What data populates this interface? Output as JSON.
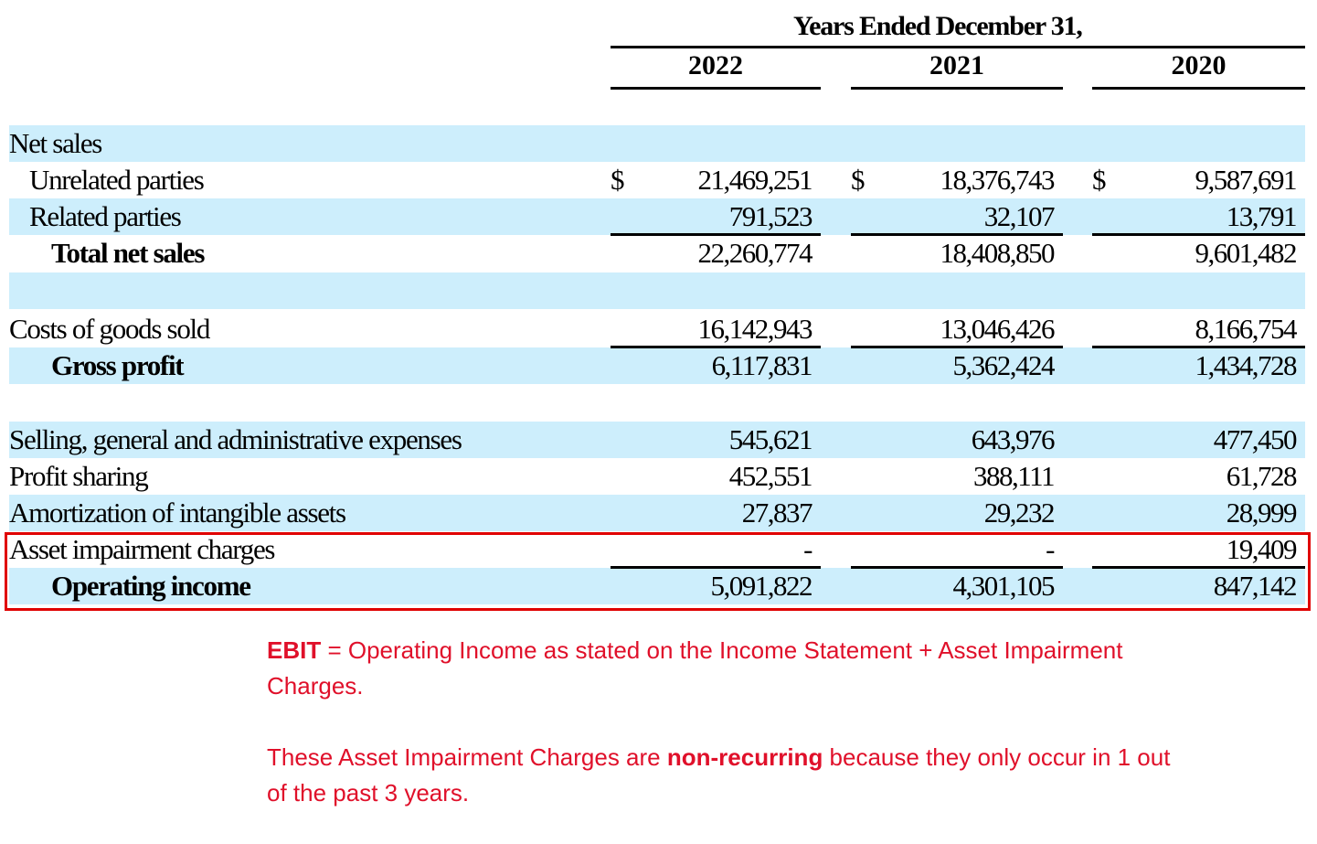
{
  "header": {
    "title": "Years Ended December 31,",
    "years": [
      "2022",
      "2021",
      "2020"
    ]
  },
  "currency_symbol": "$",
  "rows": [
    {
      "label": "Net sales",
      "values": [
        "",
        "",
        ""
      ]
    },
    {
      "label": "Unrelated parties",
      "values": [
        "21,469,251",
        "18,376,743",
        "9,587,691"
      ]
    },
    {
      "label": "Related parties",
      "values": [
        "791,523",
        "32,107",
        "13,791"
      ]
    },
    {
      "label": "Total net sales",
      "values": [
        "22,260,774",
        "18,408,850",
        "9,601,482"
      ]
    },
    {
      "label": "",
      "values": [
        "",
        "",
        ""
      ]
    },
    {
      "label": "Costs of goods sold",
      "values": [
        "16,142,943",
        "13,046,426",
        "8,166,754"
      ]
    },
    {
      "label": "Gross profit",
      "values": [
        "6,117,831",
        "5,362,424",
        "1,434,728"
      ]
    },
    {
      "label": "",
      "values": [
        "",
        "",
        ""
      ]
    },
    {
      "label": "Selling, general and administrative expenses",
      "values": [
        "545,621",
        "643,976",
        "477,450"
      ]
    },
    {
      "label": "Profit sharing",
      "values": [
        "452,551",
        "388,111",
        "61,728"
      ]
    },
    {
      "label": "Amortization of intangible assets",
      "values": [
        "27,837",
        "29,232",
        "28,999"
      ]
    },
    {
      "label": "Asset impairment charges",
      "values": [
        "-",
        "-",
        "19,409"
      ]
    },
    {
      "label": "Operating income",
      "values": [
        "5,091,822",
        "4,301,105",
        "847,142"
      ]
    }
  ],
  "notes": {
    "ebit_bold": "EBIT",
    "ebit_rest": " = Operating Income as stated on the Income Statement + Asset Impairment Charges.",
    "nr_pre": "These Asset Impairment Charges are ",
    "nr_bold": "non-recurring",
    "nr_post": " because they only occur in 1 out of the past 3 years."
  },
  "colors": {
    "band": "#cdeefc",
    "highlight": "#e00000",
    "note": "#e0102a"
  }
}
